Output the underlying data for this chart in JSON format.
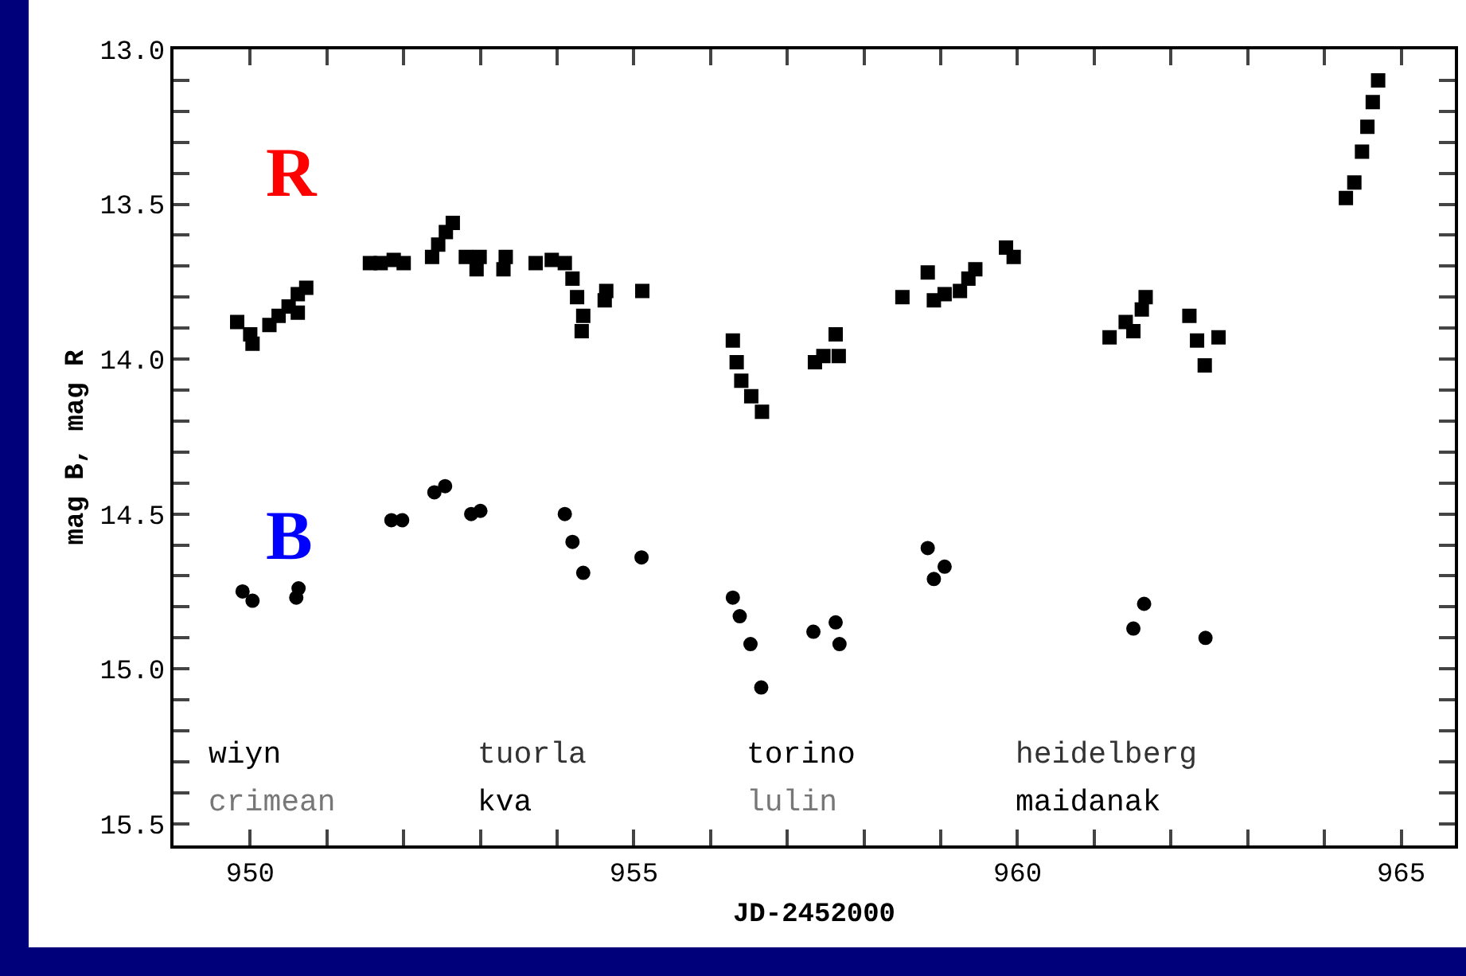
{
  "chart_data": {
    "type": "scatter",
    "xlabel": "JD-2452000",
    "ylabel": "mag B, mag R",
    "annotations": [
      "R",
      "B",
      "wiyn",
      "crimean",
      "tuorla",
      "kva",
      "torino",
      "lulin",
      "heidelberg",
      "maidanak"
    ],
    "xlim": [
      949,
      965.7
    ],
    "ylim": [
      15.57,
      13.0
    ],
    "xticks": [
      950,
      {
        "value": 951,
        "label": null
      },
      {
        "value": 952,
        "label": null
      },
      {
        "value": 953,
        "label": null
      },
      {
        "value": 954,
        "label": null
      },
      955,
      {
        "value": 956,
        "label": null
      },
      {
        "value": 957,
        "label": null
      },
      {
        "value": 958,
        "label": null
      },
      {
        "value": 959,
        "label": null
      },
      960,
      {
        "value": 961,
        "label": null
      },
      {
        "value": 962,
        "label": null
      },
      {
        "value": 963,
        "label": null
      },
      {
        "value": 964,
        "label": null
      },
      965
    ],
    "yticks": [
      {
        "value": 13,
        "label": "13.0"
      },
      {
        "value": 13.1,
        "label": null
      },
      {
        "value": 13.2,
        "label": null
      },
      {
        "value": 13.3,
        "label": null
      },
      {
        "value": 13.4,
        "label": null
      },
      13.5,
      {
        "value": 13.6,
        "label": null
      },
      {
        "value": 13.7,
        "label": null
      },
      {
        "value": 13.8,
        "label": null
      },
      {
        "value": 13.9,
        "label": null
      },
      {
        "value": 14,
        "label": "14.0"
      },
      {
        "value": 14.1,
        "label": null
      },
      {
        "value": 14.2,
        "label": null
      },
      {
        "value": 14.3,
        "label": null
      },
      {
        "value": 14.4,
        "label": null
      },
      14.5,
      {
        "value": 14.6,
        "label": null
      },
      {
        "value": 14.7,
        "label": null
      },
      {
        "value": 14.8,
        "label": null
      },
      {
        "value": 14.9,
        "label": null
      },
      {
        "value": 15,
        "label": "15.0"
      },
      {
        "value": 15.1,
        "label": null
      },
      {
        "value": 15.2,
        "label": null
      },
      {
        "value": 15.3,
        "label": null
      },
      {
        "value": 15.4,
        "label": null
      },
      15.5
    ],
    "grid": false,
    "series": [
      {
        "color": "#000000",
        "marker": "square",
        "x": [
          949.83,
          950.0,
          950.03,
          950.25,
          950.37,
          950.5,
          950.62,
          950.62,
          950.73,
          951.56,
          951.7,
          951.87,
          952.0,
          952.37,
          952.45,
          952.55,
          952.64,
          952.81,
          952.95,
          952.99,
          953.3,
          953.33,
          953.72,
          953.93,
          954.1,
          954.2,
          954.26,
          954.32,
          954.34,
          954.62,
          954.64,
          955.11,
          956.29,
          956.34,
          956.4,
          956.53,
          956.67,
          957.36,
          957.47,
          957.63,
          957.67,
          958.5,
          958.83,
          958.91,
          959.05,
          959.25,
          959.36,
          959.45,
          959.85,
          959.95,
          961.2,
          961.41,
          961.51,
          961.62,
          961.67,
          962.24,
          962.34,
          962.44,
          962.62,
          964.28,
          964.39,
          964.49,
          964.56,
          964.63,
          964.7
        ],
        "values": [
          13.88,
          13.92,
          13.95,
          13.89,
          13.86,
          13.83,
          13.79,
          13.85,
          13.77,
          13.69,
          13.69,
          13.68,
          13.69,
          13.67,
          13.63,
          13.59,
          13.56,
          13.67,
          13.71,
          13.67,
          13.71,
          13.67,
          13.69,
          13.68,
          13.69,
          13.74,
          13.8,
          13.91,
          13.86,
          13.81,
          13.78,
          13.78,
          13.94,
          14.01,
          14.07,
          14.12,
          14.17,
          14.01,
          13.99,
          13.92,
          13.99,
          13.8,
          13.72,
          13.81,
          13.79,
          13.78,
          13.74,
          13.71,
          13.64,
          13.67,
          13.93,
          13.88,
          13.91,
          13.84,
          13.8,
          13.86,
          13.94,
          14.02,
          13.93,
          13.48,
          13.43,
          13.33,
          13.25,
          13.17,
          13.1
        ]
      },
      {
        "color": "#000000",
        "marker": "circle",
        "x": [
          949.9,
          950.03,
          950.6,
          950.63,
          951.84,
          951.98,
          952.4,
          952.54,
          952.88,
          953.0,
          954.1,
          954.2,
          954.34,
          955.1,
          956.29,
          956.38,
          956.52,
          956.66,
          957.34,
          957.63,
          957.68,
          958.83,
          958.91,
          959.05,
          961.51,
          961.65,
          962.45
        ],
        "values": [
          14.75,
          14.78,
          14.77,
          14.74,
          14.52,
          14.52,
          14.43,
          14.41,
          14.5,
          14.49,
          14.5,
          14.59,
          14.69,
          14.64,
          14.77,
          14.83,
          14.92,
          15.06,
          14.88,
          14.85,
          14.92,
          14.61,
          14.71,
          14.67,
          14.87,
          14.79,
          14.9
        ]
      }
    ]
  }
}
